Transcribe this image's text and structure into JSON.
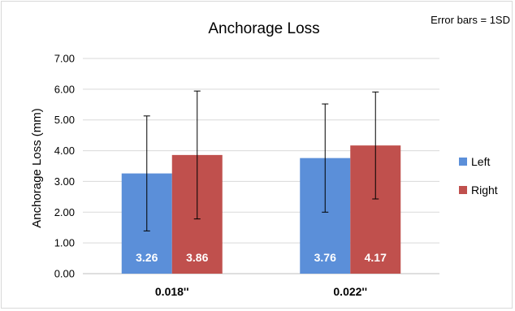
{
  "chart_data": {
    "type": "bar",
    "title": "Anchorage Loss",
    "note": "Error bars = 1SD",
    "xlabel": "",
    "ylabel": "Anchorage Loss (mm)",
    "categories": [
      "0.018''",
      "0.022''"
    ],
    "ylim": [
      0,
      7
    ],
    "yticks": [
      "0.00",
      "1.00",
      "2.00",
      "3.00",
      "4.00",
      "5.00",
      "6.00",
      "7.00"
    ],
    "grid": true,
    "legend_position": "right",
    "series": [
      {
        "name": "Left",
        "color": "#5b8fd9",
        "values": [
          3.26,
          3.76
        ],
        "value_labels": [
          "3.26",
          "3.76"
        ],
        "error": [
          1.87,
          1.76
        ]
      },
      {
        "name": "Right",
        "color": "#c0504d",
        "values": [
          3.86,
          4.17
        ],
        "value_labels": [
          "3.86",
          "4.17"
        ],
        "error": [
          2.08,
          1.74
        ]
      }
    ]
  }
}
